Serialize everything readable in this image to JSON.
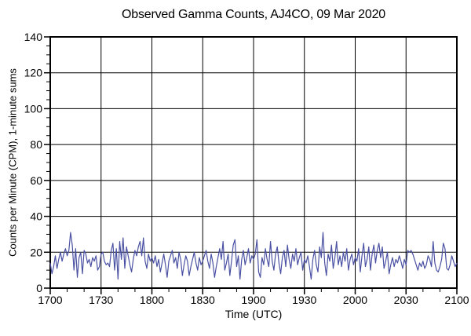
{
  "chart_data": {
    "type": "line",
    "title": "Observed Gamma Counts, AJ4CO, 09 Mar 2020",
    "xlabel": "Time (UTC)",
    "ylabel": "Counts per Minute (CPM), 1-minute sums",
    "x_range_minutes": [
      0,
      240
    ],
    "xticks": [
      {
        "label": "1700",
        "t": 0
      },
      {
        "label": "1730",
        "t": 30
      },
      {
        "label": "1800",
        "t": 60
      },
      {
        "label": "1830",
        "t": 90
      },
      {
        "label": "1900",
        "t": 120
      },
      {
        "label": "1930",
        "t": 150
      },
      {
        "label": "2000",
        "t": 180
      },
      {
        "label": "2030",
        "t": 210
      },
      {
        "label": "2100",
        "t": 240
      }
    ],
    "x_minor_step_minutes": 10,
    "ylim": [
      0,
      140
    ],
    "yticks": [
      0,
      20,
      40,
      60,
      80,
      100,
      120,
      140
    ],
    "y_minor_step": 5,
    "grid": true,
    "legend": "none",
    "axis_color": "#000000",
    "line_color": "#4a51a3",
    "series": [
      {
        "name": "gamma-counts-1min-sums",
        "start_time_utc": "1700",
        "interval_minutes": 1,
        "values": [
          14,
          8,
          12,
          18,
          11,
          16,
          20,
          15,
          19,
          22,
          18,
          21,
          31,
          24,
          10,
          22,
          6,
          17,
          20,
          8,
          21,
          19,
          14,
          16,
          12,
          17,
          15,
          18,
          10,
          12,
          19,
          20,
          15,
          13,
          14,
          12,
          21,
          25,
          10,
          22,
          5,
          26,
          16,
          28,
          11,
          23,
          18,
          13,
          9,
          16,
          21,
          18,
          23,
          26,
          18,
          28,
          15,
          11,
          19,
          15,
          17,
          14,
          18,
          12,
          16,
          9,
          14,
          19,
          13,
          6,
          15,
          18,
          21,
          14,
          17,
          11,
          20,
          16,
          7,
          13,
          18,
          15,
          7,
          12,
          16,
          20,
          14,
          10,
          17,
          13,
          15,
          18,
          21,
          15,
          11,
          19,
          14,
          6,
          12,
          17,
          22,
          16,
          26,
          10,
          14,
          19,
          7,
          15,
          24,
          27,
          12,
          18,
          5,
          16,
          21,
          13,
          17,
          22,
          14,
          18,
          16,
          19,
          27,
          9,
          6,
          17,
          13,
          22,
          16,
          12,
          26,
          15,
          10,
          19,
          23,
          14,
          8,
          17,
          21,
          12,
          24,
          16,
          11,
          19,
          15,
          22,
          13,
          17,
          20,
          10,
          16,
          14,
          18,
          12,
          5,
          16,
          21,
          13,
          9,
          23,
          17,
          31,
          14,
          7,
          19,
          15,
          24,
          11,
          17,
          26,
          13,
          18,
          12,
          20,
          15,
          22,
          10,
          16,
          19,
          13,
          17,
          15,
          22,
          9,
          18,
          25,
          12,
          16,
          23,
          10,
          19,
          24,
          14,
          21,
          25,
          17,
          23,
          11,
          15,
          20,
          8,
          13,
          17,
          12,
          16,
          14,
          18,
          15,
          11,
          16,
          13,
          21,
          20,
          21,
          19,
          16,
          13,
          10,
          14,
          12,
          15,
          11,
          13,
          18,
          16,
          12,
          26,
          14,
          10,
          9,
          12,
          16,
          25,
          22,
          11,
          10,
          13,
          18,
          15,
          12,
          14
        ]
      }
    ]
  }
}
